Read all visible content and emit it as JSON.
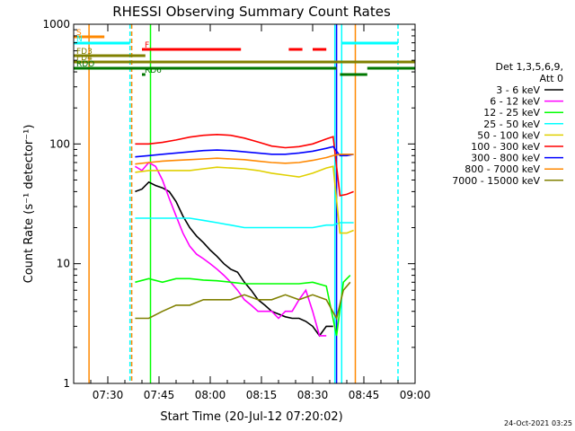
{
  "chart_data": {
    "type": "line",
    "title": "RHESSI Observing Summary Count Rates",
    "xlabel": "Start Time (20-Jul-12 07:20:02)",
    "ylabel": "Count Rate (s⁻¹ detector⁻¹)",
    "x_unit": "minutes after 07:20:02",
    "xlim": [
      0,
      100
    ],
    "ylim": [
      1,
      1000
    ],
    "yscale": "log",
    "x_ticks": [
      {
        "x": 10,
        "label": "07:30"
      },
      {
        "x": 25,
        "label": "07:45"
      },
      {
        "x": 40,
        "label": "08:00"
      },
      {
        "x": 55,
        "label": "08:15"
      },
      {
        "x": 70,
        "label": "08:30"
      },
      {
        "x": 85,
        "label": "08:45"
      },
      {
        "x": 100,
        "label": "09:00"
      }
    ],
    "y_ticks": [
      {
        "y": 1,
        "label": "1"
      },
      {
        "y": 10,
        "label": "10"
      },
      {
        "y": 100,
        "label": "100"
      },
      {
        "y": 1000,
        "label": "1000"
      }
    ],
    "legend": {
      "title_line1": "Det 1,3,5,6,9,",
      "title_line2": "Att 0",
      "position": "right"
    },
    "series": [
      {
        "name": "3 - 6 keV",
        "color": "#000000",
        "x": [
          18,
          20,
          22,
          24,
          26,
          28,
          30,
          32,
          34,
          36,
          38,
          40,
          42,
          44,
          46,
          48,
          50,
          52,
          54,
          56,
          58,
          60,
          62,
          64,
          66,
          68,
          70,
          72,
          74,
          76
        ],
        "y": [
          40,
          42,
          48,
          45,
          43,
          40,
          33,
          25,
          20,
          17,
          15,
          13,
          11.5,
          10,
          9,
          8.5,
          7,
          6,
          5,
          4.5,
          4,
          3.8,
          3.6,
          3.5,
          3.5,
          3.3,
          3,
          2.5,
          3,
          3
        ]
      },
      {
        "name": "6 - 12 keV",
        "color": "#ff00ff",
        "x": [
          18,
          20,
          22,
          24,
          26,
          28,
          30,
          32,
          34,
          36,
          38,
          40,
          42,
          44,
          46,
          48,
          50,
          52,
          54,
          56,
          58,
          60,
          62,
          64,
          66,
          68,
          70,
          72,
          74
        ],
        "y": [
          65,
          60,
          70,
          65,
          50,
          35,
          25,
          18,
          14,
          12,
          11,
          10,
          9,
          8,
          7,
          6,
          5,
          4.5,
          4,
          4,
          4,
          3.5,
          4,
          4,
          5,
          6,
          4,
          2.5,
          2.5
        ]
      },
      {
        "name": "12 - 25 keV",
        "color": "#00ff00",
        "x": [
          18,
          22,
          26,
          30,
          34,
          38,
          42,
          46,
          50,
          54,
          58,
          62,
          66,
          70,
          74,
          77,
          79,
          81
        ],
        "y": [
          7,
          7.5,
          7,
          7.5,
          7.5,
          7.3,
          7.2,
          7,
          6.8,
          6.8,
          6.8,
          6.8,
          6.8,
          7,
          6.5,
          2.5,
          7,
          8
        ]
      },
      {
        "name": "25 - 50 keV",
        "color": "#00ffff",
        "x": [
          18,
          22,
          26,
          30,
          34,
          38,
          42,
          46,
          50,
          54,
          58,
          62,
          66,
          70,
          74,
          76,
          78,
          80,
          82
        ],
        "y": [
          24,
          24,
          24,
          24,
          24,
          23,
          22,
          21,
          20,
          20,
          20,
          20,
          20,
          20,
          21,
          21,
          22,
          22,
          22
        ]
      },
      {
        "name": "50 - 100 keV",
        "color": "#e0d000",
        "x": [
          18,
          22,
          26,
          30,
          34,
          38,
          42,
          46,
          50,
          54,
          58,
          62,
          66,
          70,
          74,
          76,
          78,
          80,
          82
        ],
        "y": [
          58,
          60,
          60,
          60,
          60,
          62,
          64,
          63,
          62,
          60,
          57,
          55,
          53,
          57,
          63,
          65,
          18,
          18,
          19
        ]
      },
      {
        "name": "100 - 300 keV",
        "color": "#ff0000",
        "x": [
          18,
          22,
          26,
          30,
          34,
          38,
          42,
          46,
          50,
          54,
          58,
          62,
          66,
          70,
          74,
          76,
          78,
          80,
          82
        ],
        "y": [
          100,
          100,
          103,
          108,
          114,
          118,
          120,
          118,
          112,
          104,
          96,
          93,
          95,
          100,
          110,
          115,
          37,
          38,
          40
        ]
      },
      {
        "name": "300 - 800 keV",
        "color": "#0000ff",
        "x": [
          18,
          22,
          26,
          30,
          34,
          38,
          42,
          46,
          50,
          54,
          58,
          62,
          66,
          70,
          74,
          76,
          78,
          80,
          82
        ],
        "y": [
          78,
          80,
          82,
          84,
          86,
          88,
          89,
          88,
          86,
          84,
          82,
          82,
          84,
          87,
          92,
          95,
          80,
          80,
          82
        ]
      },
      {
        "name": "800 - 7000 keV",
        "color": "#ff8800",
        "x": [
          18,
          22,
          26,
          30,
          34,
          38,
          42,
          46,
          50,
          54,
          58,
          62,
          66,
          70,
          74,
          76,
          78,
          80,
          82
        ],
        "y": [
          68,
          70,
          72,
          73,
          74,
          75,
          76,
          75,
          74,
          72,
          70,
          69,
          70,
          73,
          77,
          80,
          82,
          82,
          82
        ]
      },
      {
        "name": "7000 - 15000 keV",
        "color": "#808000",
        "x": [
          18,
          22,
          26,
          30,
          34,
          38,
          42,
          46,
          50,
          54,
          58,
          62,
          66,
          70,
          74,
          77,
          79,
          81
        ],
        "y": [
          3.5,
          3.5,
          4,
          4.5,
          4.5,
          5,
          5,
          5,
          5.5,
          5,
          5,
          5.5,
          5,
          5.5,
          5,
          3.5,
          6,
          7
        ]
      }
    ],
    "flags": [
      {
        "label": "S",
        "color": "#ff8800",
        "segments": [
          [
            0,
            9
          ]
        ]
      },
      {
        "label": "N",
        "color": "#00ffff",
        "segments": [
          [
            0,
            16.5
          ],
          [
            78.5,
            95
          ]
        ]
      },
      {
        "label": "F",
        "color": "#ff0000",
        "segments": [
          [
            20,
            49
          ],
          [
            63,
            67
          ],
          [
            70,
            74
          ]
        ]
      },
      {
        "label": "FD3",
        "color": "#808000",
        "segments": [
          [
            0,
            21
          ]
        ]
      },
      {
        "label": "FD4",
        "color": "#808000",
        "segments": [
          [
            0,
            100
          ]
        ]
      },
      {
        "label": "RDO",
        "color": "#007700",
        "segments": [
          [
            0,
            77
          ],
          [
            86,
            100
          ]
        ]
      },
      {
        "label": "RD6",
        "color": "#007700",
        "segments": [
          [
            20,
            21
          ],
          [
            78,
            86
          ]
        ]
      }
    ],
    "vlines": [
      {
        "x": 4.5,
        "color": "#ff8800",
        "style": "solid"
      },
      {
        "x": 16.5,
        "color": "#00ffff",
        "style": "dashed"
      },
      {
        "x": 17,
        "color": "#ff8800",
        "style": "dashed"
      },
      {
        "x": 22.5,
        "color": "#00ff00",
        "style": "solid"
      },
      {
        "x": 76.5,
        "color": "#00ffff",
        "style": "solid"
      },
      {
        "x": 77,
        "color": "#0000ff",
        "style": "solid"
      },
      {
        "x": 78.5,
        "color": "#00ffff",
        "style": "solid"
      },
      {
        "x": 82.5,
        "color": "#ff8800",
        "style": "solid"
      },
      {
        "x": 95,
        "color": "#00ffff",
        "style": "dashed"
      }
    ],
    "footer_timestamp": "24-Oct-2021 03:25"
  }
}
